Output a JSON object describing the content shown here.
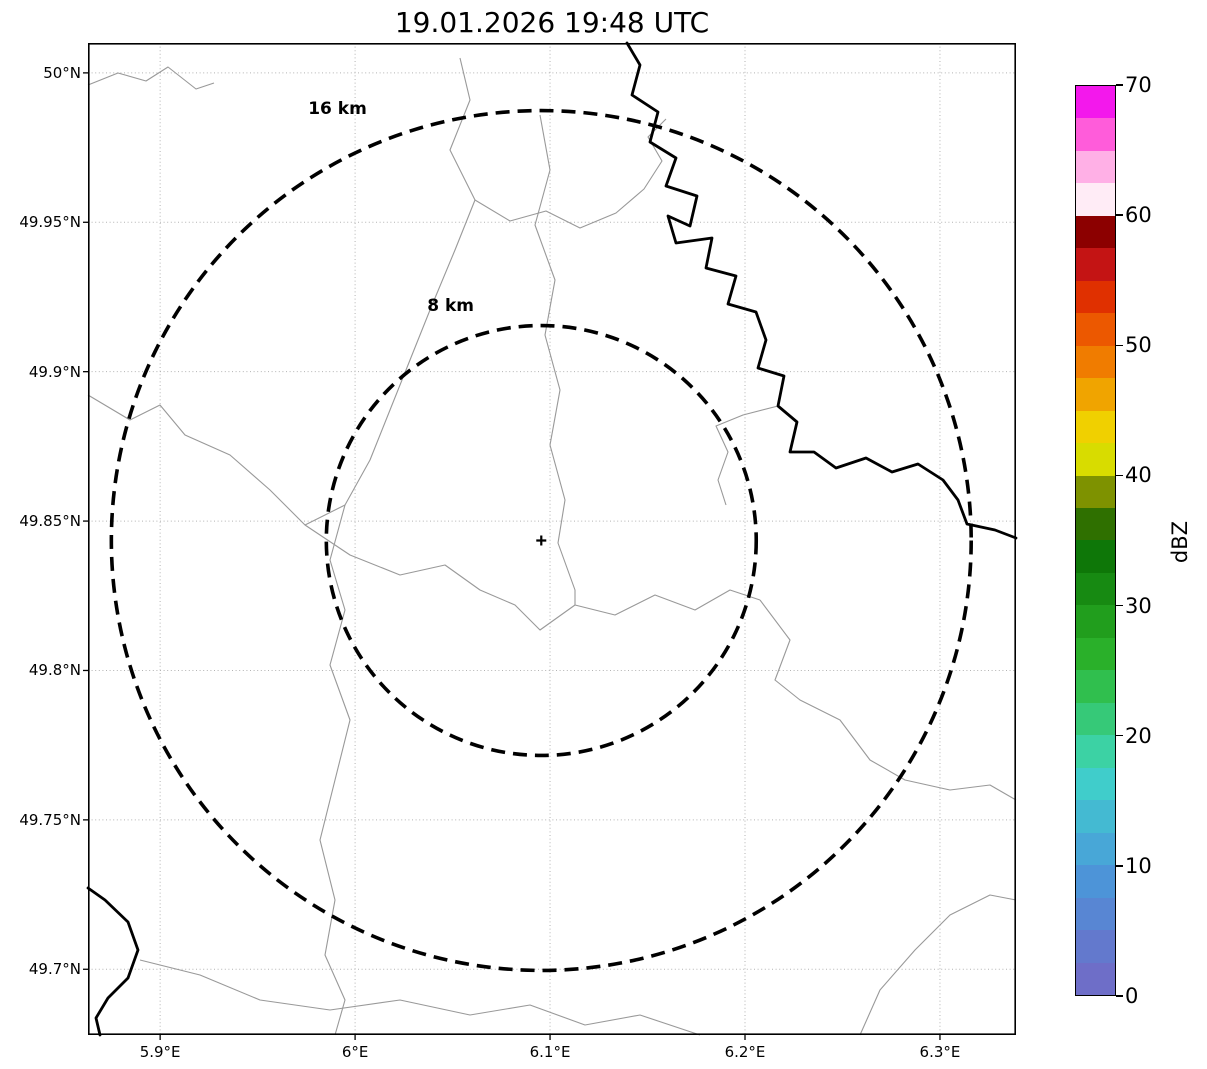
{
  "title": "19.01.2026 19:48 UTC",
  "map": {
    "x_ticks": [
      {
        "label": "5.9°E",
        "lon": 5.9
      },
      {
        "label": "6°E",
        "lon": 6.0
      },
      {
        "label": "6.1°E",
        "lon": 6.1
      },
      {
        "label": "6.2°E",
        "lon": 6.2
      },
      {
        "label": "6.3°E",
        "lon": 6.3
      }
    ],
    "y_ticks": [
      {
        "label": "50°N",
        "lat": 50.0
      },
      {
        "label": "49.95°N",
        "lat": 49.95
      },
      {
        "label": "49.9°N",
        "lat": 49.9
      },
      {
        "label": "49.85°N",
        "lat": 49.85
      },
      {
        "label": "49.8°N",
        "lat": 49.8
      },
      {
        "label": "49.75°N",
        "lat": 49.75
      },
      {
        "label": "49.7°N",
        "lat": 49.7
      }
    ],
    "radar_center": {
      "lon": 6.0955,
      "lat": 49.8435,
      "marker": "+"
    },
    "range_rings": [
      {
        "label": "16 km",
        "radius_km": 16,
        "label_lon": 5.991,
        "label_lat": 49.988
      },
      {
        "label": "8 km",
        "radius_km": 8,
        "label_lon": 6.049,
        "label_lat": 49.922
      }
    ]
  },
  "colorbar": {
    "label": "dBZ",
    "min": 0,
    "max": 70,
    "step_dbz": 2.5,
    "tick_values": [
      0,
      10,
      20,
      30,
      40,
      50,
      60,
      70
    ],
    "colors_bottom_to_top": [
      "#6e6ec8",
      "#6379cd",
      "#5886d3",
      "#4d94d8",
      "#48a7d7",
      "#44bad2",
      "#40cdcb",
      "#3cd2a4",
      "#36c978",
      "#30bf4e",
      "#2ab02a",
      "#219e1d",
      "#178a12",
      "#0e7708",
      "#2f7000",
      "#7e9200",
      "#d8dc00",
      "#f0d000",
      "#f0a400",
      "#f07c00",
      "#ec5800",
      "#e03000",
      "#c41414",
      "#8c0000",
      "#ffecf6",
      "#ffb0e6",
      "#ff5cda",
      "#f318ec"
    ]
  },
  "chart_data": {
    "type": "heatmap",
    "title": "19.01.2026 19:48 UTC",
    "x_axis": {
      "tick_labels": [
        "5.9°E",
        "6°E",
        "6.1°E",
        "6.2°E",
        "6.3°E"
      ],
      "range_deg_east": [
        5.863,
        6.339
      ]
    },
    "y_axis": {
      "tick_labels": [
        "50°N",
        "49.95°N",
        "49.9°N",
        "49.85°N",
        "49.8°N",
        "49.75°N",
        "49.7°N"
      ],
      "range_deg_north": [
        49.678,
        50.01
      ]
    },
    "grid": true,
    "colorbar": {
      "label": "dBZ",
      "range": [
        0,
        70
      ],
      "ticks": [
        0,
        10,
        20,
        30,
        40,
        50,
        60,
        70
      ]
    },
    "range_rings_km": [
      8,
      16
    ],
    "radar_site": {
      "lon": 6.0955,
      "lat": 49.8435
    },
    "values": []
  }
}
